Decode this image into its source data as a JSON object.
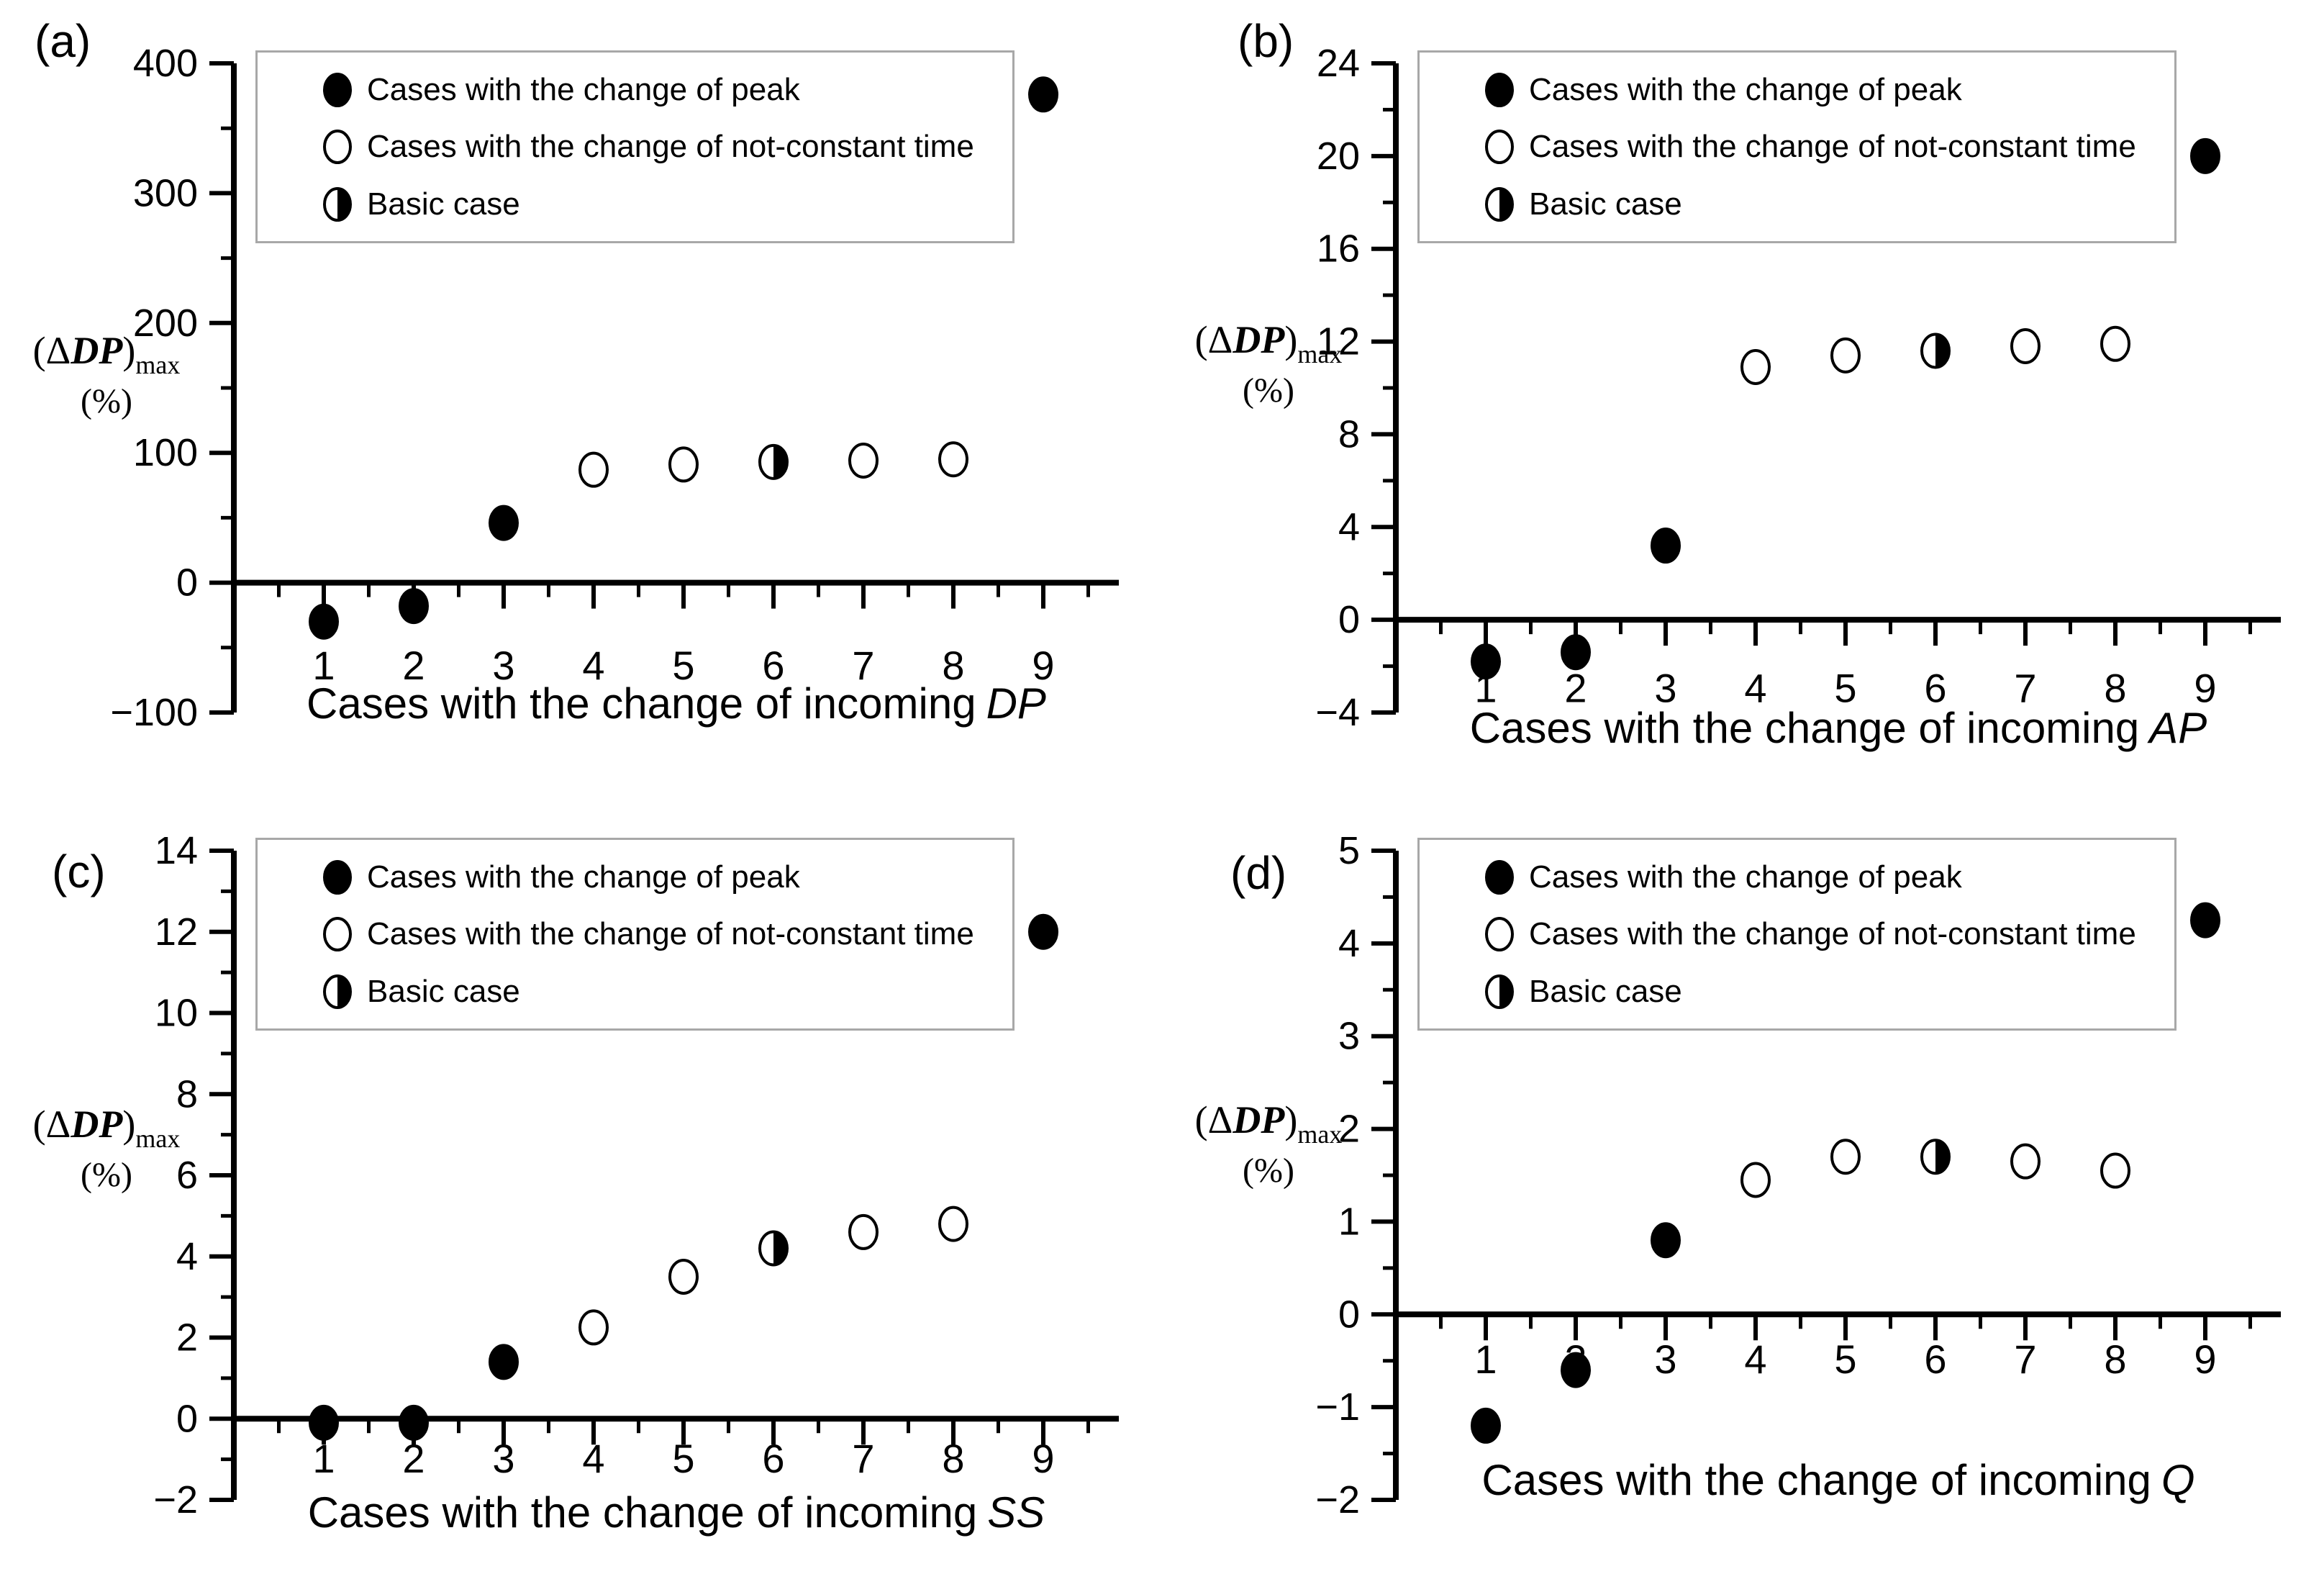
{
  "figure": {
    "background": "#ffffff",
    "ink": "#000000",
    "legend_border": "#a8a8a8"
  },
  "legend": {
    "position": "top-inside",
    "items": [
      {
        "marker": "filled-circle",
        "label": "Cases with the change of peak"
      },
      {
        "marker": "open-circle",
        "label": "Cases with the change of not-constant time"
      },
      {
        "marker": "half-filled-circle",
        "label": "Basic case"
      }
    ]
  },
  "chart_data": {
    "type": "scatter",
    "grid": false,
    "legend_position": "top-inside",
    "marker_meaning": {
      "filled": "Cases with the change of peak",
      "open": "Cases with the change of not-constant time",
      "half": "Basic case"
    },
    "panels": [
      {
        "label": "(a)",
        "xlabel_prefix": "Cases with the change of incoming",
        "xlabel_var": "DP",
        "ylabel": {
          "open": "(Δ",
          "var": "DP",
          "close": ")",
          "sub": "max",
          "unit": "(%)"
        },
        "ylim": [
          -100,
          400
        ],
        "yticks": [
          {
            "v": 400,
            "label": "400"
          },
          {
            "v": 300,
            "label": "300"
          },
          {
            "v": 200,
            "label": "200"
          },
          {
            "v": 100,
            "label": "100"
          },
          {
            "v": 0,
            "label": "0"
          },
          {
            "v": -100,
            "label": "−100"
          }
        ],
        "xticks": [
          1,
          2,
          3,
          4,
          5,
          6,
          7,
          8,
          9
        ],
        "points": [
          {
            "x": 1,
            "y": -30,
            "marker": "filled"
          },
          {
            "x": 2,
            "y": -18,
            "marker": "filled"
          },
          {
            "x": 3,
            "y": 46,
            "marker": "filled"
          },
          {
            "x": 4,
            "y": 87,
            "marker": "open"
          },
          {
            "x": 5,
            "y": 91,
            "marker": "open"
          },
          {
            "x": 6,
            "y": 93,
            "marker": "half"
          },
          {
            "x": 7,
            "y": 94,
            "marker": "open"
          },
          {
            "x": 8,
            "y": 95,
            "marker": "open"
          },
          {
            "x": 9,
            "y": 376,
            "marker": "filled"
          }
        ]
      },
      {
        "label": "(b)",
        "xlabel_prefix": "Cases with the change of incoming",
        "xlabel_var": "AP",
        "ylabel": {
          "open": "(Δ",
          "var": "DP",
          "close": ")",
          "sub": "max",
          "unit": "(%)"
        },
        "ylim": [
          -4,
          24
        ],
        "yticks": [
          {
            "v": 24,
            "label": "24"
          },
          {
            "v": 20,
            "label": "20"
          },
          {
            "v": 16,
            "label": "16"
          },
          {
            "v": 12,
            "label": "12"
          },
          {
            "v": 8,
            "label": "8"
          },
          {
            "v": 4,
            "label": "4"
          },
          {
            "v": 0,
            "label": "0"
          },
          {
            "v": -4,
            "label": "−4"
          }
        ],
        "xticks": [
          1,
          2,
          3,
          4,
          5,
          6,
          7,
          8,
          9
        ],
        "points": [
          {
            "x": 1,
            "y": -1.8,
            "marker": "filled"
          },
          {
            "x": 2,
            "y": -1.4,
            "marker": "filled"
          },
          {
            "x": 3,
            "y": 3.2,
            "marker": "filled"
          },
          {
            "x": 4,
            "y": 10.9,
            "marker": "open"
          },
          {
            "x": 5,
            "y": 11.4,
            "marker": "open"
          },
          {
            "x": 6,
            "y": 11.6,
            "marker": "half"
          },
          {
            "x": 7,
            "y": 11.8,
            "marker": "open"
          },
          {
            "x": 8,
            "y": 11.9,
            "marker": "open"
          },
          {
            "x": 9,
            "y": 20,
            "marker": "filled"
          }
        ]
      },
      {
        "label": "(c)",
        "xlabel_prefix": "Cases with the change of incoming",
        "xlabel_var": "SS",
        "ylabel": {
          "open": "(Δ",
          "var": "DP",
          "close": ")",
          "sub": "max",
          "unit": "(%)"
        },
        "ylim": [
          -2,
          14
        ],
        "yticks": [
          {
            "v": 14,
            "label": "14"
          },
          {
            "v": 12,
            "label": "12"
          },
          {
            "v": 10,
            "label": "10"
          },
          {
            "v": 8,
            "label": "8"
          },
          {
            "v": 6,
            "label": "6"
          },
          {
            "v": 4,
            "label": "4"
          },
          {
            "v": 2,
            "label": "2"
          },
          {
            "v": 0,
            "label": "0"
          },
          {
            "v": -2,
            "label": "−2"
          }
        ],
        "xticks": [
          1,
          2,
          3,
          4,
          5,
          6,
          7,
          8,
          9
        ],
        "points": [
          {
            "x": 1,
            "y": -0.1,
            "marker": "filled"
          },
          {
            "x": 2,
            "y": -0.1,
            "marker": "filled"
          },
          {
            "x": 3,
            "y": 1.4,
            "marker": "filled"
          },
          {
            "x": 4,
            "y": 2.25,
            "marker": "open"
          },
          {
            "x": 5,
            "y": 3.5,
            "marker": "open"
          },
          {
            "x": 6,
            "y": 4.2,
            "marker": "half"
          },
          {
            "x": 7,
            "y": 4.6,
            "marker": "open"
          },
          {
            "x": 8,
            "y": 4.8,
            "marker": "open"
          },
          {
            "x": 9,
            "y": 12,
            "marker": "filled"
          }
        ]
      },
      {
        "label": "(d)",
        "xlabel_prefix": "Cases with the change of incoming",
        "xlabel_var": "Q",
        "ylabel": {
          "open": "(Δ",
          "var": "DP",
          "close": ")",
          "sub": "max",
          "unit": "(%)"
        },
        "ylim": [
          -2,
          5
        ],
        "yticks": [
          {
            "v": 5,
            "label": "5"
          },
          {
            "v": 4,
            "label": "4"
          },
          {
            "v": 3,
            "label": "3"
          },
          {
            "v": 2,
            "label": "2"
          },
          {
            "v": 1,
            "label": "1"
          },
          {
            "v": 0,
            "label": "0"
          },
          {
            "v": -1,
            "label": "−1"
          },
          {
            "v": -2,
            "label": "−2"
          }
        ],
        "xticks": [
          1,
          2,
          3,
          4,
          5,
          6,
          7,
          8,
          9
        ],
        "points": [
          {
            "x": 1,
            "y": -1.2,
            "marker": "filled"
          },
          {
            "x": 2,
            "y": -0.6,
            "marker": "filled"
          },
          {
            "x": 3,
            "y": 0.8,
            "marker": "filled"
          },
          {
            "x": 4,
            "y": 1.45,
            "marker": "open"
          },
          {
            "x": 5,
            "y": 1.7,
            "marker": "open"
          },
          {
            "x": 6,
            "y": 1.7,
            "marker": "half"
          },
          {
            "x": 7,
            "y": 1.65,
            "marker": "open"
          },
          {
            "x": 8,
            "y": 1.55,
            "marker": "open"
          },
          {
            "x": 9,
            "y": 4.25,
            "marker": "filled"
          }
        ]
      }
    ]
  }
}
